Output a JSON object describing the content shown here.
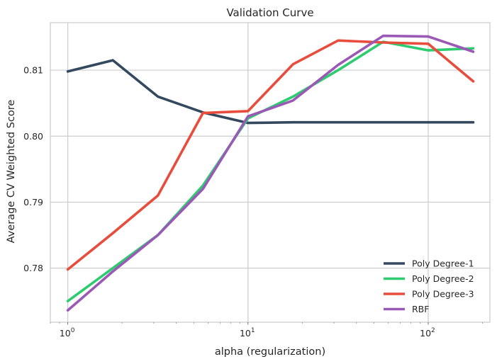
{
  "chart_data": {
    "type": "line",
    "title": "Validation Curve",
    "xlabel": "alpha (regularization)",
    "ylabel": "Average CV Weighted Score",
    "xscale": "log",
    "xlim": [
      0.8,
      220
    ],
    "ylim": [
      0.7718,
      0.8172
    ],
    "grid": true,
    "legend": "lower-right",
    "x_ticks": [
      {
        "value": 1,
        "base": "10",
        "exp": "0"
      },
      {
        "value": 10,
        "base": "10",
        "exp": "1"
      },
      {
        "value": 100,
        "base": "10",
        "exp": "2"
      }
    ],
    "y_ticks": [
      {
        "value": 0.78,
        "label": "0.78"
      },
      {
        "value": 0.79,
        "label": "0.79"
      },
      {
        "value": 0.8,
        "label": "0.80"
      },
      {
        "value": 0.81,
        "label": "0.81"
      }
    ],
    "x": [
      1.0,
      1.778,
      3.162,
      5.623,
      10.0,
      17.78,
      31.62,
      56.23,
      100.0,
      177.8
    ],
    "series": [
      {
        "name": "Poly Degree-1",
        "color": "#34495e",
        "values": [
          0.8098,
          0.8115,
          0.806,
          0.8036,
          0.802,
          0.8021,
          0.8021,
          0.8021,
          0.8021,
          0.8021
        ]
      },
      {
        "name": "Poly Degree-2",
        "color": "#2ecc71",
        "values": [
          0.775,
          0.78,
          0.785,
          0.7925,
          0.8027,
          0.806,
          0.81,
          0.8143,
          0.813,
          0.8133
        ]
      },
      {
        "name": "Poly Degree-3",
        "color": "#e74c3c",
        "values": [
          0.7798,
          0.7853,
          0.791,
          0.8035,
          0.8038,
          0.8109,
          0.8145,
          0.8142,
          0.814,
          0.8083
        ]
      },
      {
        "name": "RBF",
        "color": "#9b59b6",
        "values": [
          0.7736,
          0.7795,
          0.785,
          0.792,
          0.803,
          0.8054,
          0.8108,
          0.8152,
          0.8151,
          0.8128
        ]
      }
    ]
  }
}
